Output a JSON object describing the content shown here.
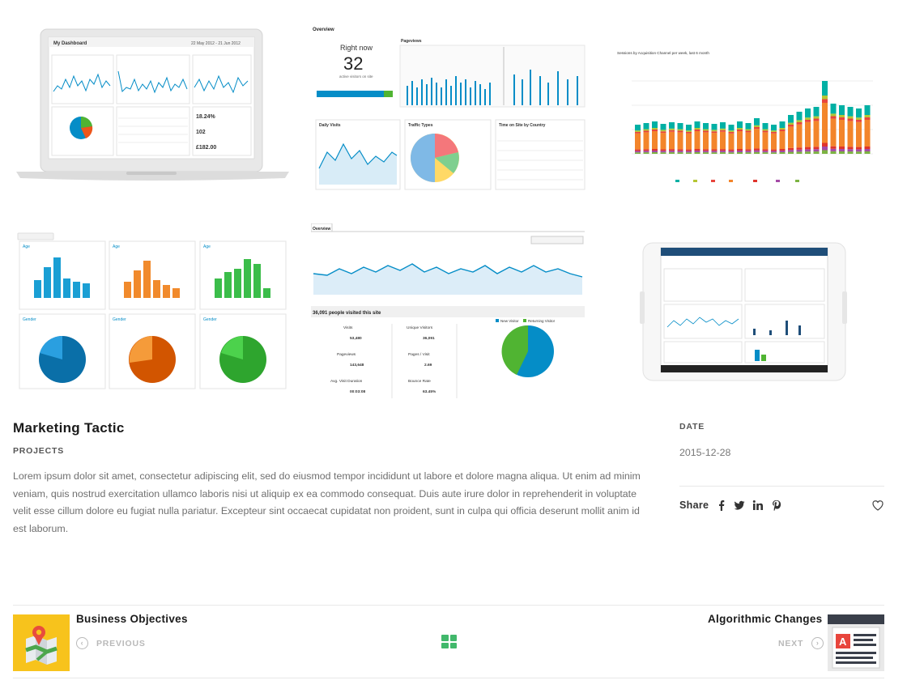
{
  "project": {
    "title": "Marketing Tactic",
    "category": "PROJECTS",
    "description": "Lorem ipsum dolor sit amet, consectetur adipiscing elit, sed do eiusmod tempor incididunt ut labore et dolore magna aliqua. Ut enim ad minim veniam, quis nostrud exercitation ullamco laboris nisi ut aliquip ex ea commodo consequat. Duis aute irure dolor in reprehenderit in voluptate velit esse cillum dolore eu fugiat nulla pariatur. Excepteur sint occaecat cupidatat non proident, sunt in culpa qui officia deserunt mollit anim id est laborum."
  },
  "meta": {
    "date_label": "DATE",
    "date_value": "2015-12-28",
    "share_label": "Share",
    "share_icons": [
      "facebook-icon",
      "twitter-icon",
      "linkedin-icon",
      "pinterest-icon"
    ]
  },
  "navigation": {
    "previous": {
      "title": "Business Objectives",
      "label": "PREVIOUS"
    },
    "next": {
      "title": "Algorithmic Changes",
      "label": "NEXT"
    }
  },
  "collage": {
    "laptop": {
      "dashboard_title": "My Dashboard",
      "date_range": "22 May 2012 - 21 Jun 2012",
      "stat_1": "18.24%",
      "stat_2": "102",
      "stat_3": "£182.00"
    },
    "overview": {
      "heading": "Overview",
      "right_now": "Right now",
      "active_count": "32",
      "active_label": "active visitors on site",
      "pageviews": "Pageviews",
      "daily_visits": "Daily Visits",
      "traffic_types": "Traffic Types",
      "time_on_site": "Time on Site by Country"
    },
    "sessions_title": "Sessions by Acquisition Channel per week, last 6 month",
    "audience": {
      "age_label": "Age",
      "gender_label": "Gender"
    },
    "visits_overview": {
      "heading": "Overview",
      "people_visited": "36,091 people visited this site",
      "stats": [
        {
          "label": "Visits",
          "value": "53,480"
        },
        {
          "label": "Unique Visitors",
          "value": "36,091"
        },
        {
          "label": "Pageviews",
          "value": "143,648"
        },
        {
          "label": "Pages / Visit",
          "value": "2.69"
        },
        {
          "label": "Avg. Visit Duration",
          "value": "00:03:08"
        },
        {
          "label": "Bounce Rate",
          "value": "63.45%"
        }
      ],
      "legend_new": "New Visitor",
      "legend_returning": "Returning Visitor"
    }
  },
  "colors": {
    "accent_green": "#41b86b",
    "ga_blue": "#058dc7",
    "ga_orange": "#ed7e17"
  }
}
